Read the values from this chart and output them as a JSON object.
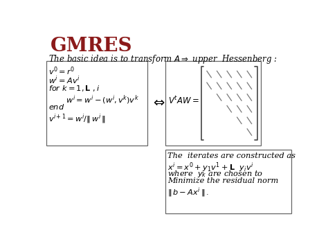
{
  "title": "GMRES",
  "title_color": "#8B1A1A",
  "subtitle": "The basic idea is to transform $A \\Rightarrow$ upper  Hessenberg :",
  "algo_lines": [
    "$v^0 = r^0$",
    "$w^i = Av^i$",
    "$for\\ k = 1, \\mathbf{L}\\ , i$",
    "       $w^i = w^i - (w^i, v^k)v^k$",
    "$end$",
    "$v^{i+1} = w^i /\\|\\, w^i\\,\\|$"
  ],
  "matrix_label": "$V^t AW =$",
  "iterate_lines": [
    "The  iterates are constructed as",
    "$x^i = x^0 + y_1 v^1 + \\mathbf{L}\\ \\ y_i v^i$",
    "where  $y_k$ are chosen to",
    "Minimize the residual norm",
    "$\\|\\, b - Ax^i\\,\\|\\,.$"
  ],
  "bg_color": "white",
  "box_edgecolor": "#666666"
}
